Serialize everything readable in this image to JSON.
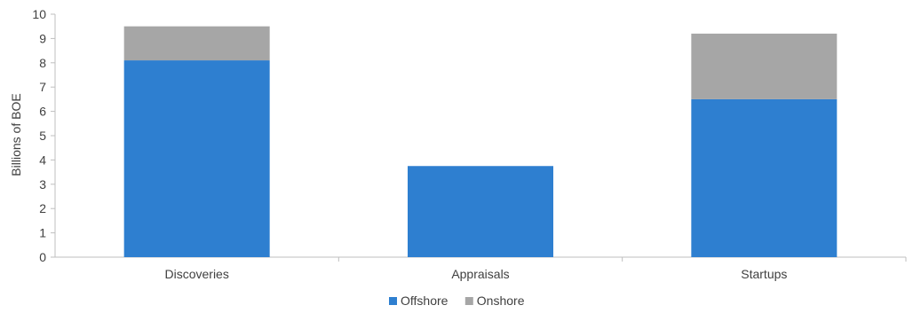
{
  "chart_data": {
    "type": "bar",
    "stacked": true,
    "title": "",
    "xlabel": "",
    "ylabel": "Billions of BOE",
    "ylim": [
      0,
      10
    ],
    "yticks": [
      0,
      1,
      2,
      3,
      4,
      5,
      6,
      7,
      8,
      9,
      10
    ],
    "categories": [
      "Discoveries",
      "Appraisals",
      "Startups"
    ],
    "series": [
      {
        "name": "Offshore",
        "color": "#2E7FD0",
        "values": [
          8.1,
          3.75,
          6.5
        ]
      },
      {
        "name": "Onshore",
        "color": "#A6A6A6",
        "values": [
          1.4,
          0.0,
          2.7
        ]
      }
    ],
    "legend_position": "bottom",
    "grid": false
  }
}
